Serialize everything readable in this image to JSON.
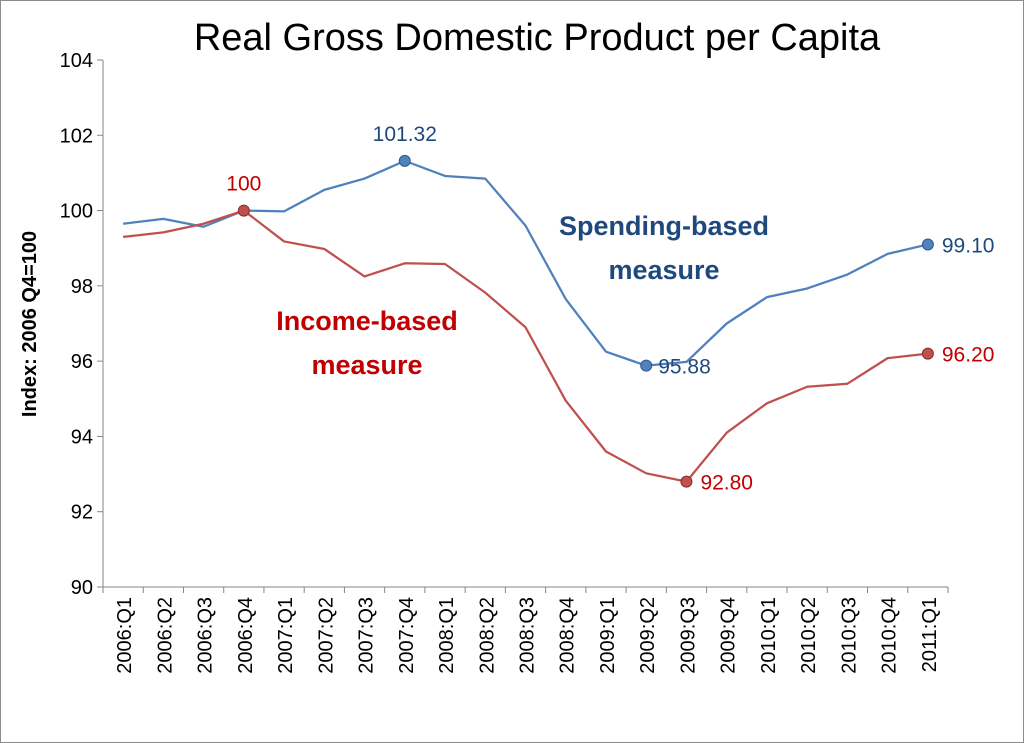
{
  "chart_data": {
    "type": "line",
    "title": "Real Gross Domestic Product per Capita",
    "ylabel": "Index: 2006 Q4=100",
    "xlabel": "",
    "ylim": [
      90,
      104
    ],
    "yticks": [
      "90",
      "92",
      "94",
      "96",
      "98",
      "100",
      "102",
      "104"
    ],
    "grid": false,
    "categories": [
      "2006:Q1",
      "2006:Q2",
      "2006:Q3",
      "2006:Q4",
      "2007:Q1",
      "2007:Q2",
      "2007:Q3",
      "2007:Q4",
      "2008:Q1",
      "2008:Q2",
      "2008:Q3",
      "2008:Q4",
      "2009:Q1",
      "2009:Q2",
      "2009:Q3",
      "2009:Q4",
      "2010:Q1",
      "2010:Q2",
      "2010:Q3",
      "2010:Q4",
      "2011:Q1"
    ],
    "series": [
      {
        "name": "Spending-based measure",
        "color": "#4f81bd",
        "label_color": "#1f497d",
        "values": [
          99.65,
          99.78,
          99.57,
          100.0,
          99.98,
          100.55,
          100.85,
          101.32,
          100.92,
          100.85,
          99.6,
          97.65,
          96.25,
          95.88,
          95.98,
          97.0,
          97.7,
          97.93,
          98.3,
          98.85,
          99.1
        ]
      },
      {
        "name": "Income-based measure",
        "color": "#c0504d",
        "label_color": "#c00000",
        "values": [
          99.3,
          99.42,
          99.65,
          100.0,
          99.18,
          98.98,
          98.25,
          98.6,
          98.58,
          97.82,
          96.9,
          94.95,
          93.6,
          93.02,
          92.8,
          94.1,
          94.88,
          95.32,
          95.4,
          96.08,
          96.2
        ]
      }
    ],
    "annotations": [
      {
        "text": "101.32",
        "series": 0,
        "index": 7
      },
      {
        "text": "95.88",
        "series": 0,
        "index": 13
      },
      {
        "text": "99.10",
        "series": 0,
        "index": 20
      },
      {
        "text": "100",
        "series": 1,
        "index": 3
      },
      {
        "text": "92.80",
        "series": 1,
        "index": 14
      },
      {
        "text": "96.20",
        "series": 1,
        "index": 20
      }
    ],
    "series_labels": {
      "spending_line1": "Spending-based",
      "spending_line2": "measure",
      "income_line1": "Income-based",
      "income_line2": "measure"
    }
  }
}
